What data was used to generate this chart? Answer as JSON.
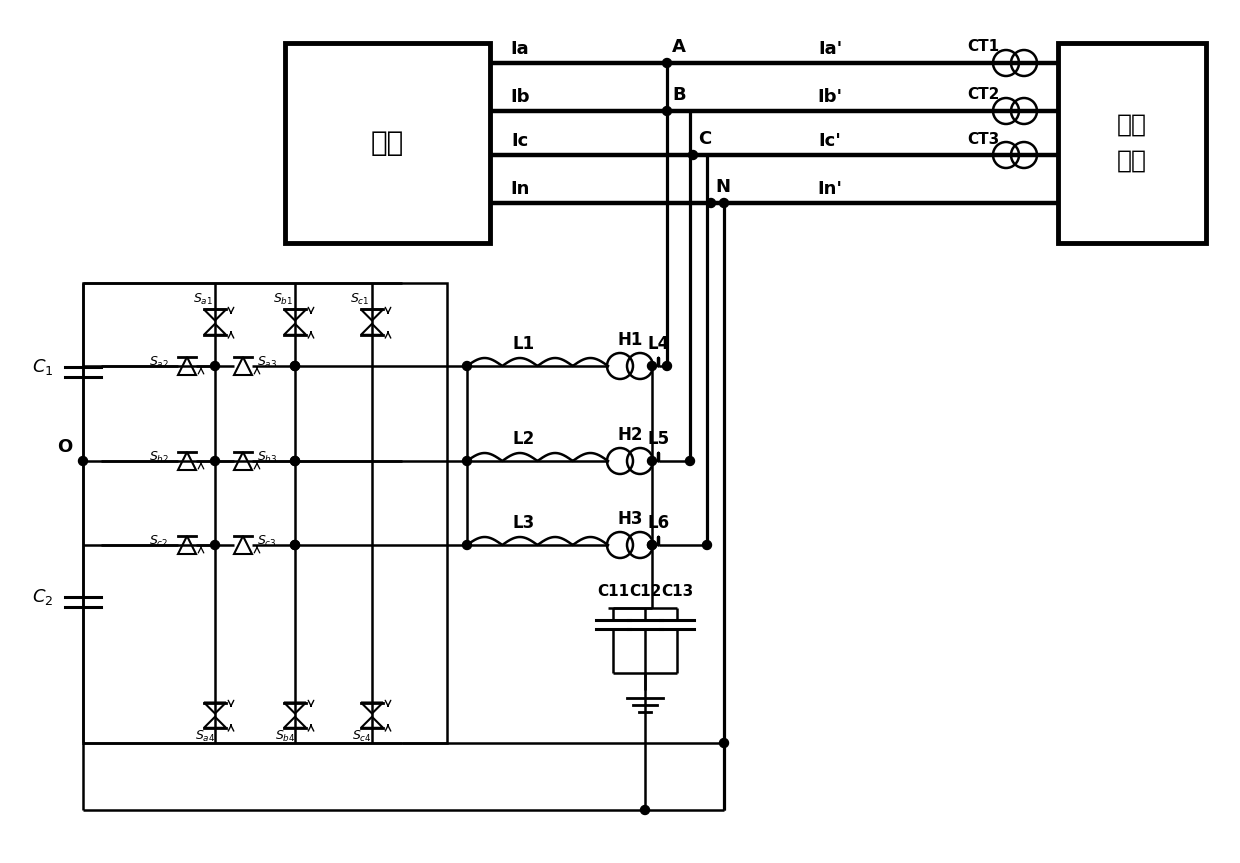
{
  "bg_color": "#ffffff",
  "lc": "#000000",
  "lw": 1.8,
  "tlw": 3.2,
  "grid_label": "电网",
  "load_label1": "三相",
  "load_label2": "负载",
  "bus_labels_left": [
    "Ia",
    "Ib",
    "Ic",
    "In"
  ],
  "bus_labels_right": [
    "Ia'",
    "Ib'",
    "Ic'",
    "In'"
  ],
  "node_labels": [
    "A",
    "B",
    "C",
    "N"
  ],
  "ct_labels": [
    "CT1",
    "CT2",
    "CT3"
  ],
  "L_left_labels": [
    "L1",
    "L2",
    "L3"
  ],
  "L_right_labels": [
    "L4",
    "L5",
    "L6"
  ],
  "H_labels": [
    "H1",
    "H2",
    "H3"
  ],
  "cap_labels": [
    "C11",
    "C12",
    "C13"
  ],
  "C1_label": "C",
  "C2_label": "C",
  "O_label": "O",
  "sw_top": [
    "$S_{a1}$",
    "$S_{b1}$",
    "$S_{c1}$"
  ],
  "sw_mid_left": [
    "$S_{a2}$",
    "$S_{b2}$",
    "$S_{c2}$"
  ],
  "sw_mid_right": [
    "$S_{a3}$",
    "$S_{b3}$",
    "$S_{c3}$"
  ],
  "sw_bot": [
    "$S_{a4}$",
    "$S_{b4}$",
    "$S_{c4}$"
  ]
}
